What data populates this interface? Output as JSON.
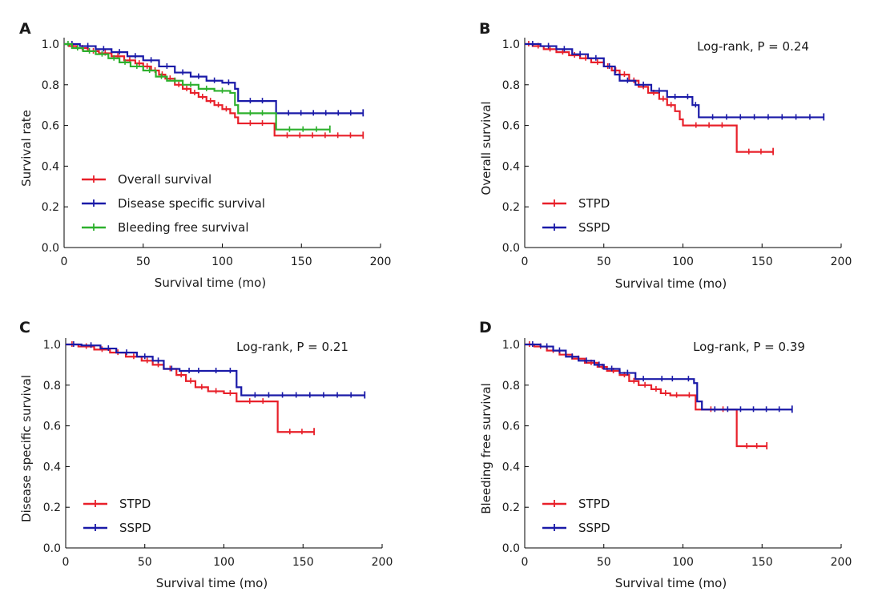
{
  "chart_data": [
    {
      "panel": "A",
      "type": "line",
      "xlabel": "Survival time (mo)",
      "ylabel": "Survival rate",
      "xlim": [
        0,
        200
      ],
      "ylim": [
        0.0,
        1.0
      ],
      "xticks": [
        0,
        50,
        100,
        150,
        200
      ],
      "yticks": [
        "0.0",
        "0.2",
        "0.4",
        "0.6",
        "0.8",
        "1.0"
      ],
      "annotation": "",
      "legend": "bottom-left",
      "series": [
        {
          "name": "Overall survival",
          "color": "#e8202a",
          "steps": [
            [
              0,
              1.0
            ],
            [
              3,
              0.99
            ],
            [
              8,
              0.98
            ],
            [
              15,
              0.965
            ],
            [
              22,
              0.955
            ],
            [
              30,
              0.94
            ],
            [
              38,
              0.92
            ],
            [
              45,
              0.905
            ],
            [
              50,
              0.89
            ],
            [
              55,
              0.87
            ],
            [
              60,
              0.85
            ],
            [
              64,
              0.83
            ],
            [
              70,
              0.8
            ],
            [
              75,
              0.78
            ],
            [
              80,
              0.76
            ],
            [
              85,
              0.74
            ],
            [
              90,
              0.72
            ],
            [
              95,
              0.7
            ],
            [
              100,
              0.68
            ],
            [
              105,
              0.66
            ],
            [
              108,
              0.64
            ],
            [
              110,
              0.61
            ],
            [
              133,
              0.61
            ],
            [
              133,
              0.55
            ],
            [
              189,
              0.55
            ]
          ]
        },
        {
          "name": "Disease specific survival",
          "color": "#1a1aa8",
          "steps": [
            [
              0,
              1.0
            ],
            [
              10,
              0.99
            ],
            [
              20,
              0.975
            ],
            [
              30,
              0.96
            ],
            [
              40,
              0.94
            ],
            [
              50,
              0.92
            ],
            [
              60,
              0.89
            ],
            [
              70,
              0.86
            ],
            [
              80,
              0.84
            ],
            [
              90,
              0.82
            ],
            [
              100,
              0.81
            ],
            [
              108,
              0.78
            ],
            [
              110,
              0.72
            ],
            [
              133,
              0.72
            ],
            [
              134,
              0.66
            ],
            [
              189,
              0.66
            ]
          ]
        },
        {
          "name": "Bleeding free survival",
          "color": "#2db02d",
          "steps": [
            [
              0,
              1.0
            ],
            [
              5,
              0.98
            ],
            [
              12,
              0.965
            ],
            [
              20,
              0.95
            ],
            [
              28,
              0.93
            ],
            [
              35,
              0.91
            ],
            [
              42,
              0.89
            ],
            [
              50,
              0.87
            ],
            [
              58,
              0.84
            ],
            [
              65,
              0.82
            ],
            [
              75,
              0.8
            ],
            [
              85,
              0.78
            ],
            [
              95,
              0.77
            ],
            [
              105,
              0.76
            ],
            [
              108,
              0.7
            ],
            [
              110,
              0.66
            ],
            [
              133,
              0.66
            ],
            [
              134,
              0.58
            ],
            [
              168,
              0.58
            ]
          ]
        }
      ]
    },
    {
      "panel": "B",
      "type": "line",
      "xlabel": "Survival time (mo)",
      "ylabel": "Overall survival",
      "xlim": [
        0,
        200
      ],
      "ylim": [
        0.0,
        1.0
      ],
      "xticks": [
        0,
        50,
        100,
        150,
        200
      ],
      "yticks": [
        "0.0",
        "0.2",
        "0.4",
        "0.6",
        "0.8",
        "1.0"
      ],
      "annotation": "Log-rank, P = 0.24",
      "legend": "bottom-left",
      "series": [
        {
          "name": "STPD",
          "color": "#e8202a",
          "steps": [
            [
              0,
              1.0
            ],
            [
              5,
              0.99
            ],
            [
              12,
              0.975
            ],
            [
              20,
              0.96
            ],
            [
              28,
              0.945
            ],
            [
              35,
              0.93
            ],
            [
              42,
              0.91
            ],
            [
              50,
              0.89
            ],
            [
              55,
              0.87
            ],
            [
              60,
              0.85
            ],
            [
              66,
              0.82
            ],
            [
              72,
              0.79
            ],
            [
              78,
              0.76
            ],
            [
              85,
              0.73
            ],
            [
              90,
              0.7
            ],
            [
              95,
              0.67
            ],
            [
              98,
              0.63
            ],
            [
              100,
              0.6
            ],
            [
              133,
              0.6
            ],
            [
              134,
              0.47
            ],
            [
              157,
              0.47
            ]
          ]
        },
        {
          "name": "SSPD",
          "color": "#1a1aa8",
          "steps": [
            [
              0,
              1.0
            ],
            [
              10,
              0.99
            ],
            [
              20,
              0.975
            ],
            [
              30,
              0.95
            ],
            [
              40,
              0.93
            ],
            [
              50,
              0.89
            ],
            [
              57,
              0.85
            ],
            [
              60,
              0.82
            ],
            [
              70,
              0.8
            ],
            [
              80,
              0.77
            ],
            [
              90,
              0.74
            ],
            [
              100,
              0.74
            ],
            [
              106,
              0.7
            ],
            [
              110,
              0.64
            ],
            [
              189,
              0.64
            ]
          ]
        }
      ]
    },
    {
      "panel": "C",
      "type": "line",
      "xlabel": "Survival time (mo)",
      "ylabel": "Disease specific survival",
      "xlim": [
        0,
        200
      ],
      "ylim": [
        0.0,
        1.0
      ],
      "xticks": [
        0,
        50,
        100,
        150,
        200
      ],
      "yticks": [
        "0.0",
        "0.2",
        "0.4",
        "0.6",
        "0.8",
        "1.0"
      ],
      "annotation": "Log-rank, P = 0.21",
      "legend": "bottom-left",
      "series": [
        {
          "name": "STPD",
          "color": "#e8202a",
          "steps": [
            [
              0,
              1.0
            ],
            [
              8,
              0.99
            ],
            [
              18,
              0.975
            ],
            [
              28,
              0.96
            ],
            [
              38,
              0.94
            ],
            [
              48,
              0.92
            ],
            [
              55,
              0.9
            ],
            [
              62,
              0.88
            ],
            [
              70,
              0.85
            ],
            [
              76,
              0.82
            ],
            [
              82,
              0.79
            ],
            [
              90,
              0.77
            ],
            [
              100,
              0.76
            ],
            [
              108,
              0.72
            ],
            [
              133,
              0.72
            ],
            [
              134,
              0.57
            ],
            [
              157,
              0.57
            ]
          ]
        },
        {
          "name": "SSPD",
          "color": "#1a1aa8",
          "steps": [
            [
              0,
              1.0
            ],
            [
              10,
              0.995
            ],
            [
              22,
              0.98
            ],
            [
              32,
              0.96
            ],
            [
              45,
              0.94
            ],
            [
              55,
              0.92
            ],
            [
              62,
              0.88
            ],
            [
              72,
              0.87
            ],
            [
              90,
              0.87
            ],
            [
              100,
              0.87
            ],
            [
              108,
              0.79
            ],
            [
              111,
              0.75
            ],
            [
              189,
              0.75
            ]
          ]
        }
      ]
    },
    {
      "panel": "D",
      "type": "line",
      "xlabel": "Survival time (mo)",
      "ylabel": "Bleeding free survival",
      "xlim": [
        0,
        200
      ],
      "ylim": [
        0.0,
        1.0
      ],
      "xticks": [
        0,
        50,
        100,
        150,
        200
      ],
      "yticks": [
        "0.0",
        "0.2",
        "0.4",
        "0.6",
        "0.8",
        "1.0"
      ],
      "annotation": "Log-rank, P = 0.39",
      "legend": "bottom-left",
      "series": [
        {
          "name": "STPD",
          "color": "#e8202a",
          "steps": [
            [
              0,
              1.0
            ],
            [
              6,
              0.99
            ],
            [
              14,
              0.97
            ],
            [
              22,
              0.95
            ],
            [
              30,
              0.93
            ],
            [
              38,
              0.91
            ],
            [
              46,
              0.89
            ],
            [
              52,
              0.87
            ],
            [
              60,
              0.85
            ],
            [
              66,
              0.82
            ],
            [
              72,
              0.8
            ],
            [
              80,
              0.78
            ],
            [
              86,
              0.76
            ],
            [
              92,
              0.75
            ],
            [
              100,
              0.75
            ],
            [
              108,
              0.68
            ],
            [
              110,
              0.68
            ],
            [
              133,
              0.68
            ],
            [
              134,
              0.5
            ],
            [
              153,
              0.5
            ]
          ]
        },
        {
          "name": "SSPD",
          "color": "#1a1aa8",
          "steps": [
            [
              0,
              1.0
            ],
            [
              10,
              0.99
            ],
            [
              18,
              0.97
            ],
            [
              26,
              0.94
            ],
            [
              34,
              0.92
            ],
            [
              44,
              0.9
            ],
            [
              50,
              0.88
            ],
            [
              60,
              0.86
            ],
            [
              70,
              0.83
            ],
            [
              80,
              0.83
            ],
            [
              100,
              0.83
            ],
            [
              107,
              0.81
            ],
            [
              109,
              0.72
            ],
            [
              112,
              0.68
            ],
            [
              169,
              0.68
            ]
          ]
        }
      ]
    }
  ]
}
